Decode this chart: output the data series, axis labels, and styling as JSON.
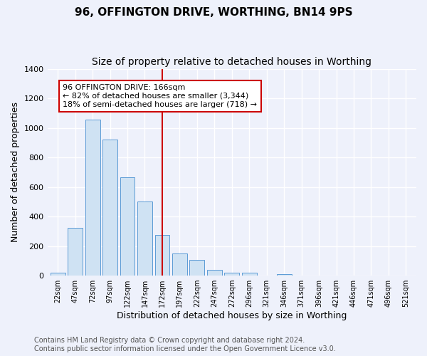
{
  "title": "96, OFFINGTON DRIVE, WORTHING, BN14 9PS",
  "subtitle": "Size of property relative to detached houses in Worthing",
  "xlabel": "Distribution of detached houses by size in Worthing",
  "ylabel": "Number of detached properties",
  "footer": "Contains HM Land Registry data © Crown copyright and database right 2024.\nContains public sector information licensed under the Open Government Licence v3.0.",
  "bar_labels": [
    "22sqm",
    "47sqm",
    "72sqm",
    "97sqm",
    "122sqm",
    "147sqm",
    "172sqm",
    "197sqm",
    "222sqm",
    "247sqm",
    "272sqm",
    "296sqm",
    "321sqm",
    "346sqm",
    "371sqm",
    "396sqm",
    "421sqm",
    "446sqm",
    "471sqm",
    "496sqm",
    "521sqm"
  ],
  "bar_values": [
    20,
    325,
    1055,
    920,
    665,
    500,
    275,
    150,
    105,
    38,
    22,
    20,
    0,
    12,
    0,
    0,
    0,
    0,
    0,
    0,
    0
  ],
  "bar_color": "#cfe2f3",
  "bar_edge_color": "#5b9bd5",
  "highlight_index": 6,
  "highlight_color": "#cc0000",
  "annotation_text": "96 OFFINGTON DRIVE: 166sqm\n← 82% of detached houses are smaller (3,344)\n18% of semi-detached houses are larger (718) →",
  "annotation_box_color": "#ffffff",
  "annotation_box_edge": "#cc0000",
  "ylim": [
    0,
    1400
  ],
  "yticks": [
    0,
    200,
    400,
    600,
    800,
    1000,
    1200,
    1400
  ],
  "bg_color": "#eef1fb",
  "plot_bg_color": "#eef1fb",
  "grid_color": "#ffffff",
  "title_fontsize": 11,
  "subtitle_fontsize": 10,
  "xlabel_fontsize": 9,
  "ylabel_fontsize": 9,
  "annotation_fontsize": 8,
  "footer_fontsize": 7
}
